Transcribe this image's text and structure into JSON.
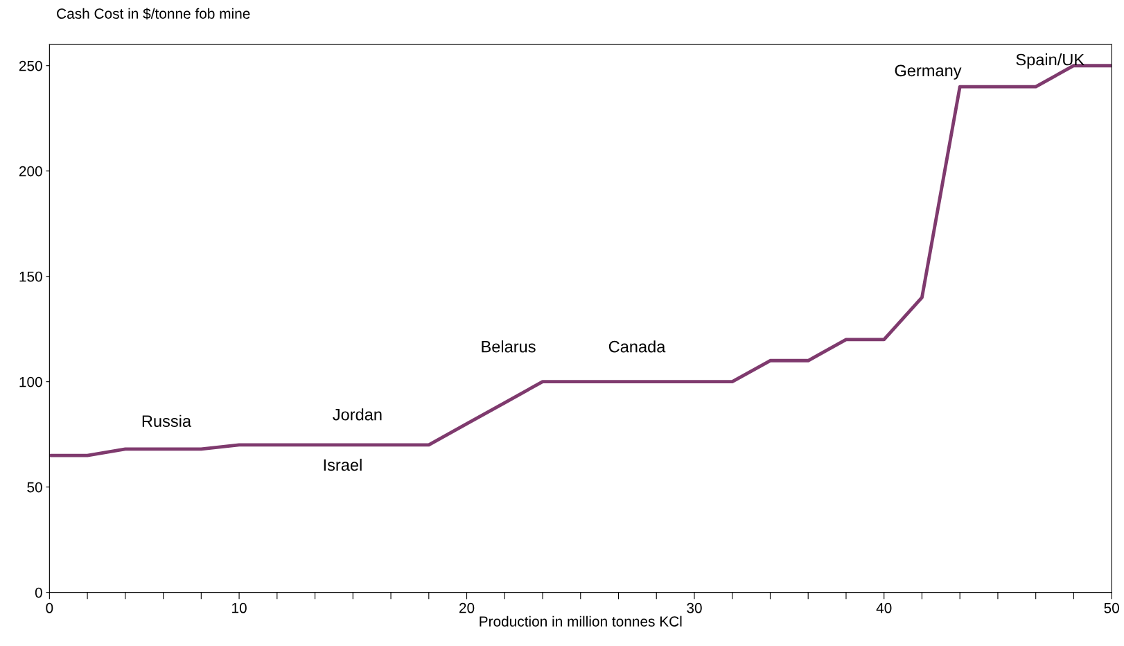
{
  "chart_data": {
    "type": "line",
    "ylabel": "Cash Cost in $/tonne fob mine",
    "xlabel": "Production in million tonnes KCl",
    "categories": [
      "0",
      null,
      null,
      null,
      null,
      "10",
      null,
      null,
      null,
      null,
      null,
      "20",
      null,
      null,
      null,
      null,
      null,
      "30",
      null,
      null,
      null,
      null,
      "40",
      null,
      null,
      null,
      null,
      null,
      "50"
    ],
    "series": [
      {
        "color": "#7f3a6e",
        "values": [
          65,
          65,
          68,
          68,
          68,
          70,
          70,
          70,
          70,
          70,
          70,
          80,
          90,
          100,
          100,
          100,
          100,
          100,
          100,
          110,
          110,
          120,
          120,
          140,
          240,
          240,
          240,
          250,
          250
        ]
      }
    ],
    "ylim": [
      0,
      260
    ],
    "yticks": [
      0,
      50,
      100,
      150,
      200,
      250
    ],
    "grid": false,
    "legend": false,
    "marker": "none",
    "line_style": "solid",
    "annotations": [
      "Russia",
      "Jordan",
      "Israel",
      "Belarus",
      "Canada",
      "Germany",
      "Spain/UK"
    ]
  }
}
